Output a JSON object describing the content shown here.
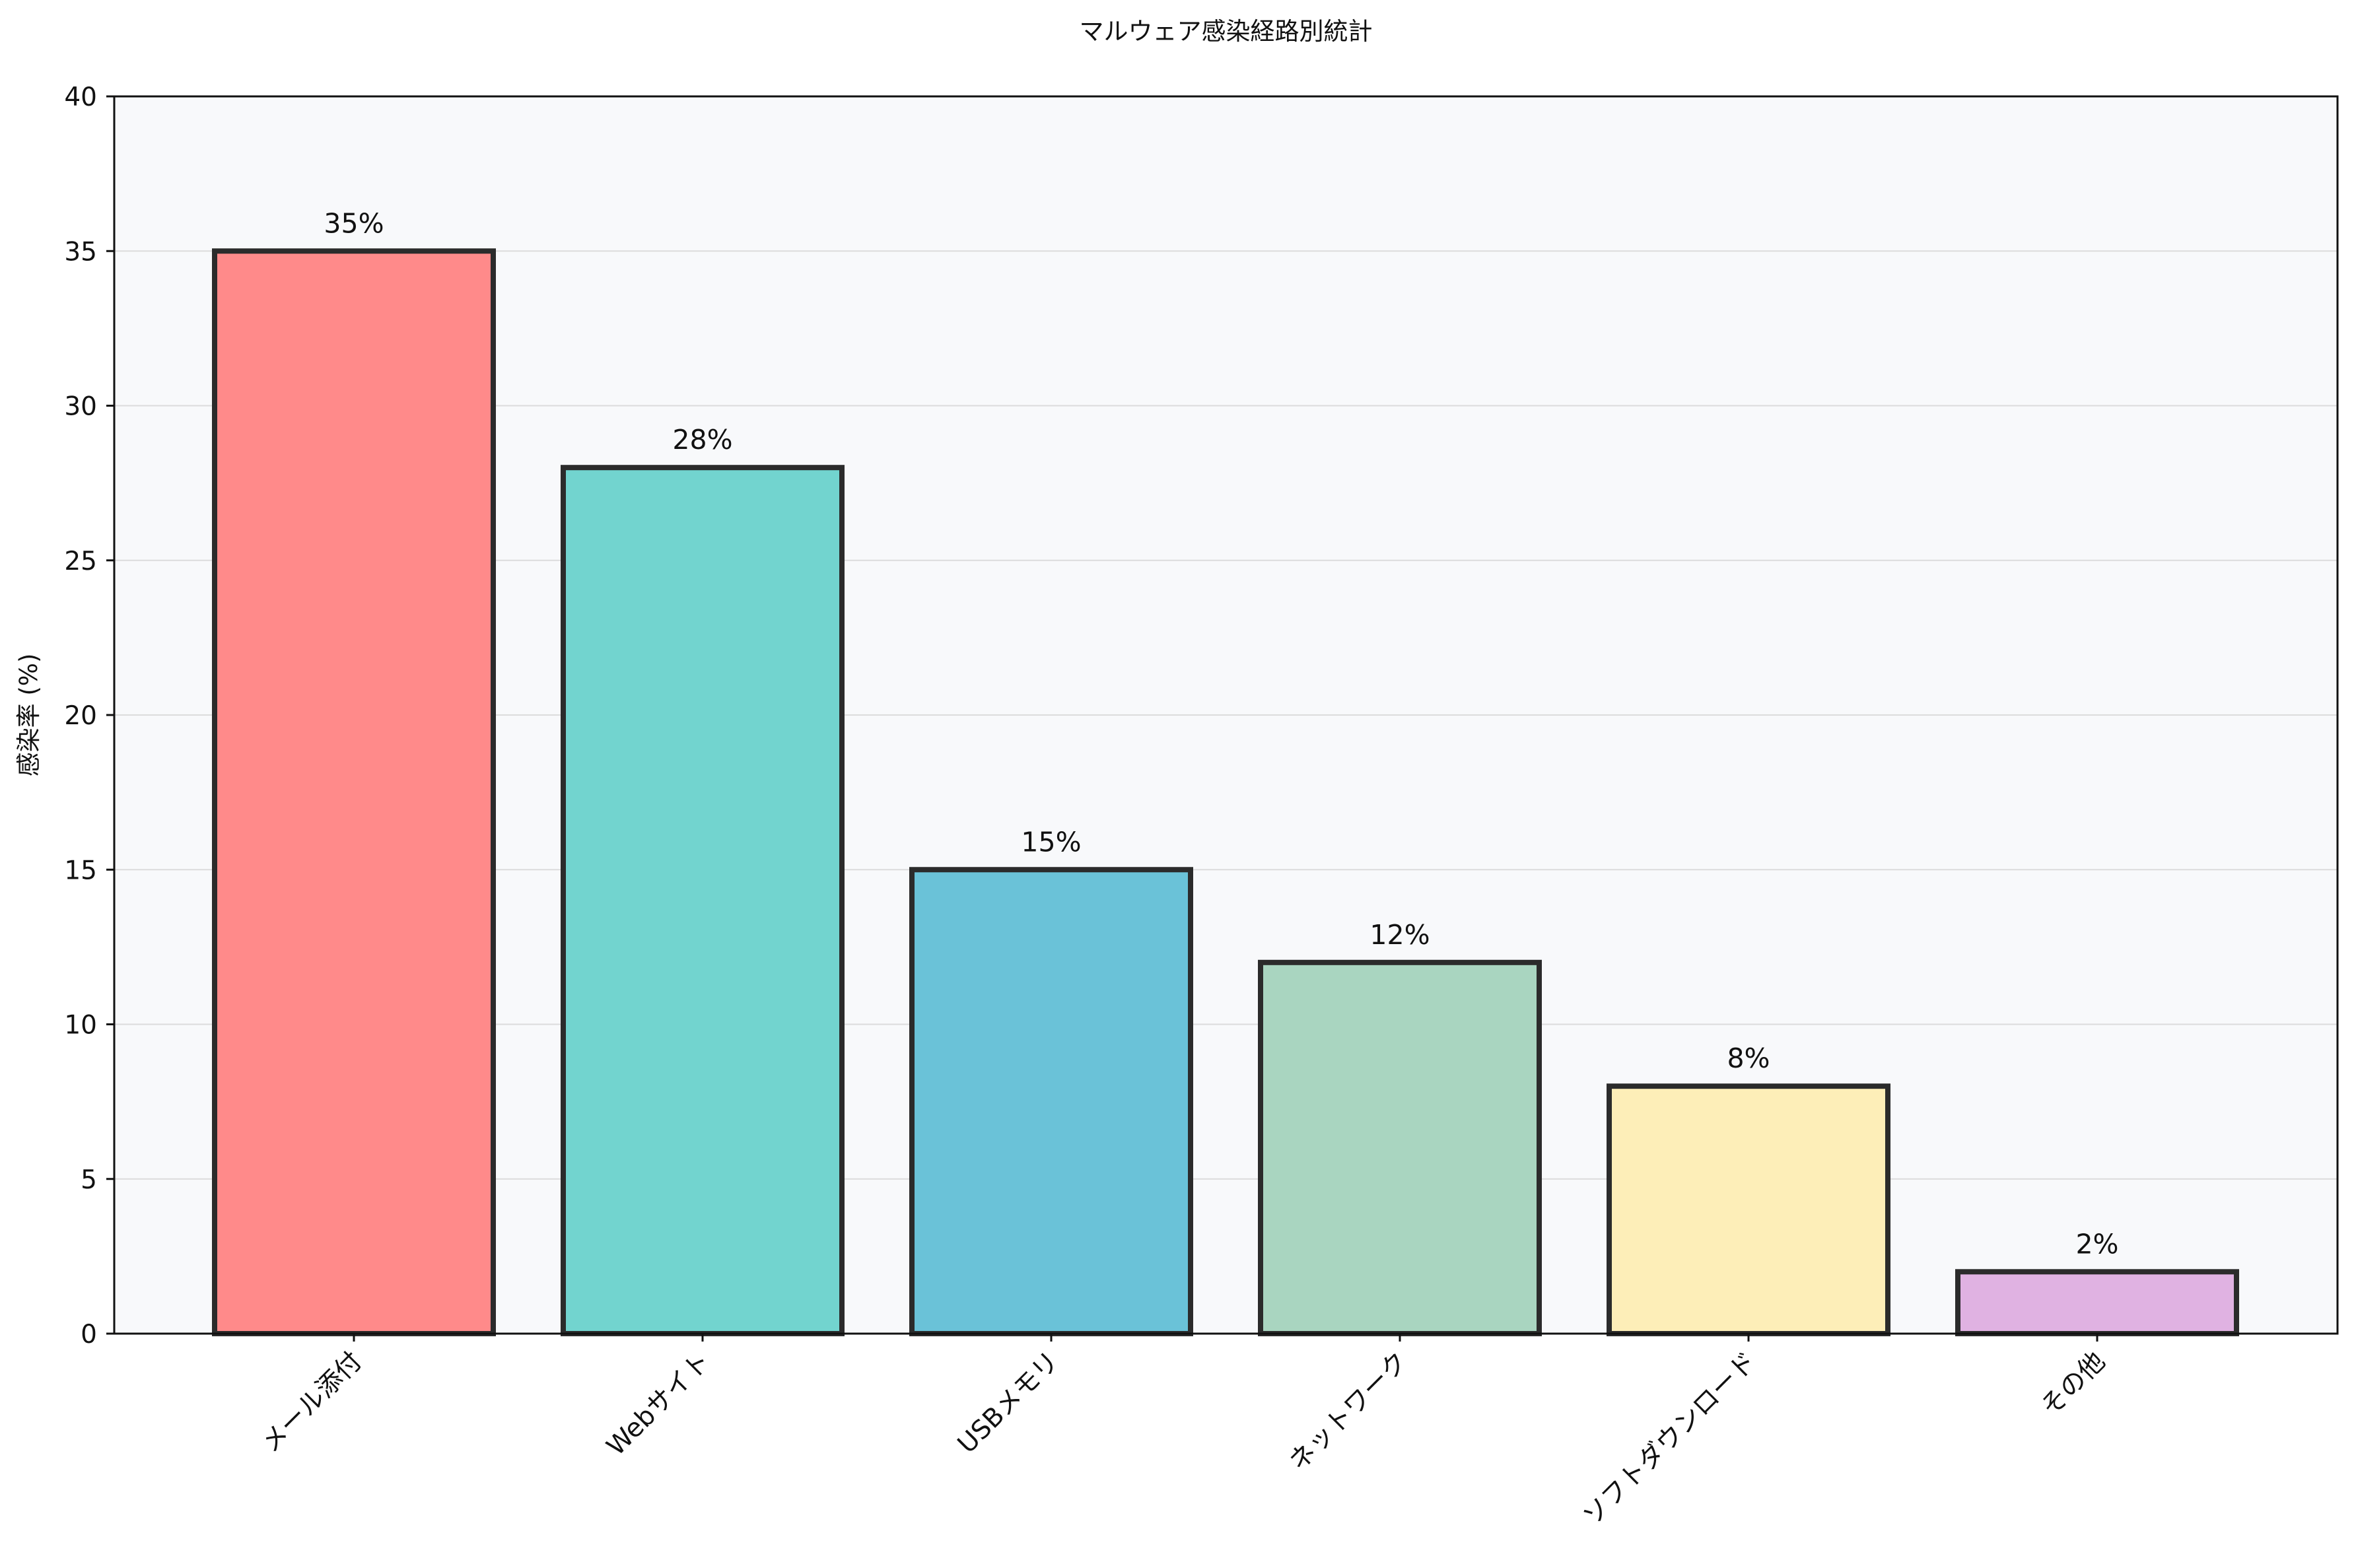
{
  "chart_data": {
    "type": "bar",
    "title": "マルウェア感染経路別統計",
    "xlabel": "",
    "ylabel": "感染率 (%)",
    "categories": [
      "メール添付",
      "Webサイト",
      "USBメモリ",
      "ネットワーク",
      "ソフトダウンロード",
      "その他"
    ],
    "values": [
      35,
      28,
      15,
      12,
      8,
      2
    ],
    "value_labels": [
      "35%",
      "28%",
      "15%",
      "12%",
      "8%",
      "2%"
    ],
    "colors": [
      "#ff8a8a",
      "#72d4cf",
      "#6ac2d8",
      "#a9d5c0",
      "#fdeeb8",
      "#e0b2e2"
    ],
    "ylim": [
      0,
      40
    ],
    "yticks": [
      0,
      5,
      10,
      15,
      20,
      25,
      30,
      35,
      40
    ],
    "grid": true,
    "legend": "none",
    "plot_background": "#f8f9fb"
  }
}
